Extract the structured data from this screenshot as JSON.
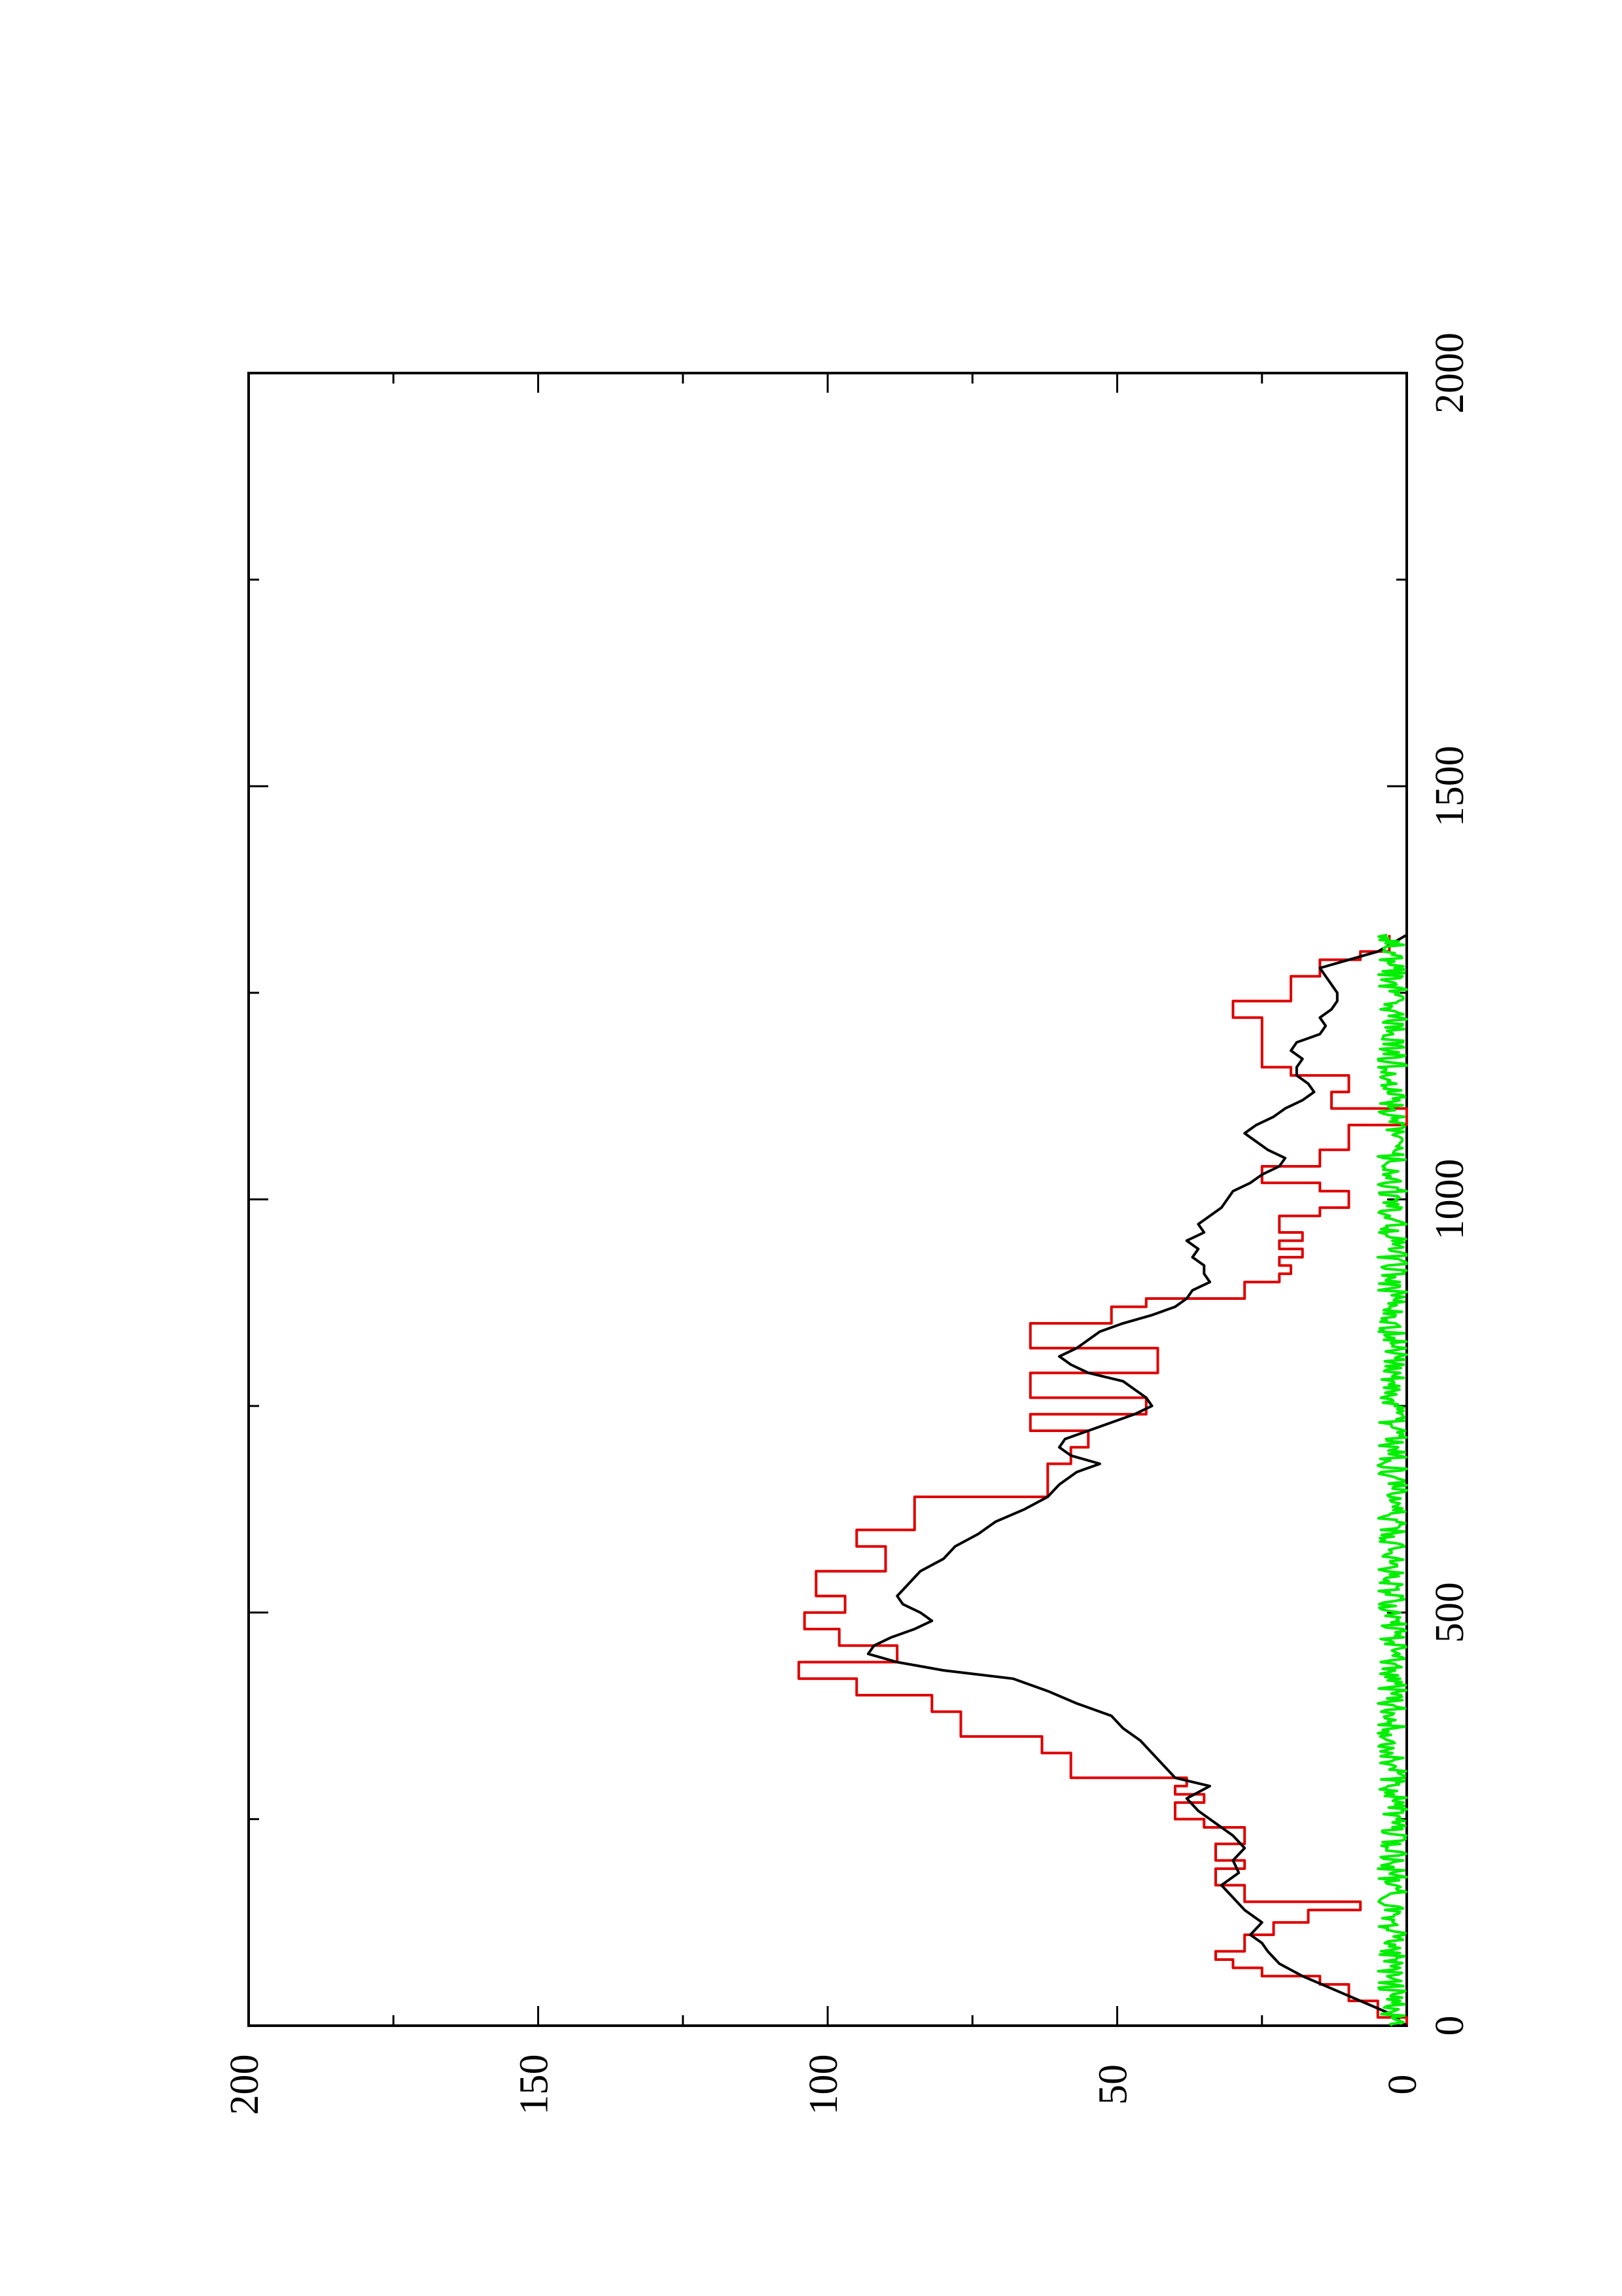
{
  "chart_data": {
    "type": "line",
    "orientation": "rotated-90-counterclockwise",
    "title": "",
    "xlabel": "",
    "ylabel": "",
    "xlim": [
      0,
      2000
    ],
    "ylim": [
      0,
      200
    ],
    "x_ticks_major": [
      0,
      500,
      1000,
      1500,
      2000
    ],
    "x_ticks_minor": [
      250,
      750,
      1250,
      1750
    ],
    "y_ticks_major": [
      0,
      50,
      100,
      150,
      200
    ],
    "y_ticks_minor": [
      25,
      75,
      125,
      175
    ],
    "x_tick_labels": [
      "0",
      "500",
      "1000",
      "1500",
      "2000"
    ],
    "y_tick_labels": [
      "0",
      "50",
      "100",
      "150",
      "200"
    ],
    "grid": false,
    "legend": "none",
    "series": [
      {
        "color": "#dd0000",
        "x": [
          0,
          10,
          10,
          30,
          30,
          50,
          50,
          60,
          60,
          70,
          70,
          80,
          80,
          90,
          90,
          110,
          110,
          125,
          125,
          140,
          140,
          150,
          150,
          170,
          170,
          190,
          190,
          200,
          200,
          220,
          220,
          240,
          240,
          250,
          250,
          270,
          270,
          280,
          280,
          290,
          290,
          300,
          300,
          330,
          330,
          350,
          350,
          380,
          380,
          400,
          400,
          420,
          420,
          440,
          440,
          460,
          460,
          480,
          480,
          500,
          500,
          520,
          520,
          550,
          550,
          580,
          580,
          600,
          600,
          640,
          640,
          680,
          680,
          700,
          700,
          720,
          720,
          740,
          740,
          760,
          760,
          790,
          790,
          820,
          820,
          850,
          850,
          870,
          870,
          880,
          880,
          900,
          900,
          910,
          910,
          920,
          920,
          930,
          930,
          940,
          940,
          950,
          950,
          960,
          960,
          980,
          980,
          990,
          990,
          1010,
          1010,
          1020,
          1020,
          1040,
          1040,
          1060,
          1060,
          1090,
          1090,
          1110,
          1110,
          1130,
          1130,
          1150,
          1150,
          1160,
          1160,
          1200,
          1200,
          1220,
          1220,
          1240,
          1240,
          1270,
          1270,
          1290,
          1290,
          1300,
          1300,
          1320
        ],
        "y": [
          0,
          0,
          5,
          5,
          10,
          10,
          15,
          15,
          25,
          25,
          30,
          30,
          33,
          33,
          28,
          28,
          23,
          23,
          17,
          17,
          8,
          8,
          28,
          28,
          33,
          33,
          28,
          28,
          33,
          33,
          28,
          28,
          35,
          35,
          40,
          40,
          35,
          35,
          40,
          40,
          38,
          38,
          58,
          58,
          63,
          63,
          77,
          77,
          82,
          82,
          95,
          95,
          105,
          105,
          88,
          88,
          98,
          98,
          104,
          104,
          97,
          97,
          102,
          102,
          90,
          90,
          95,
          95,
          85,
          85,
          62,
          62,
          58,
          58,
          55,
          55,
          65,
          65,
          45,
          45,
          65,
          65,
          43,
          43,
          65,
          65,
          51,
          51,
          45,
          45,
          28,
          28,
          22,
          22,
          20,
          20,
          22,
          22,
          18,
          18,
          22,
          22,
          18,
          18,
          22,
          22,
          15,
          15,
          10,
          10,
          15,
          15,
          25,
          25,
          15,
          15,
          10,
          10,
          0,
          0,
          13,
          13,
          10,
          10,
          20,
          20,
          25,
          25,
          25,
          25,
          30,
          30,
          20,
          20,
          15,
          15,
          8,
          8,
          3,
          3
        ]
      },
      {
        "color": "#000000",
        "x": [
          0,
          15,
          30,
          45,
          60,
          75,
          90,
          100,
          110,
          125,
          140,
          155,
          170,
          185,
          200,
          215,
          230,
          245,
          260,
          275,
          290,
          300,
          315,
          330,
          345,
          360,
          375,
          390,
          405,
          420,
          430,
          440,
          450,
          460,
          470,
          480,
          490,
          500,
          510,
          520,
          535,
          550,
          565,
          580,
          595,
          610,
          625,
          640,
          655,
          670,
          680,
          690,
          700,
          710,
          720,
          730,
          740,
          750,
          760,
          770,
          780,
          790,
          800,
          810,
          820,
          830,
          840,
          850,
          860,
          870,
          880,
          890,
          900,
          910,
          920,
          930,
          940,
          950,
          960,
          970,
          980,
          990,
          1000,
          1010,
          1020,
          1030,
          1040,
          1050,
          1060,
          1070,
          1080,
          1090,
          1100,
          1110,
          1120,
          1130,
          1140,
          1150,
          1160,
          1170,
          1180,
          1190,
          1200,
          1210,
          1220,
          1230,
          1240,
          1250,
          1260,
          1270,
          1280,
          1290,
          1300,
          1320
        ],
        "y": [
          0,
          3,
          8,
          13,
          18,
          22,
          24,
          25,
          27,
          25,
          28,
          30,
          32,
          29,
          30,
          28,
          30,
          33,
          36,
          38,
          34,
          40,
          42,
          44,
          46,
          49,
          51,
          57,
          62,
          68,
          80,
          88,
          93,
          92,
          89,
          85,
          82,
          84,
          87,
          88,
          86,
          84,
          80,
          78,
          74,
          71,
          66,
          62,
          60,
          57,
          53,
          58,
          60,
          59,
          55,
          51,
          47,
          44,
          45,
          47,
          49,
          55,
          58,
          60,
          57,
          55,
          53,
          49,
          44,
          40,
          38,
          37,
          34,
          35,
          35,
          37,
          36,
          38,
          35,
          36,
          34,
          32,
          31,
          30,
          27,
          25,
          22,
          21,
          24,
          26,
          28,
          26,
          23,
          21,
          18,
          16,
          17,
          19,
          19,
          18,
          20,
          19,
          15,
          14,
          15,
          13,
          12,
          12,
          13,
          14,
          15,
          10,
          5,
          0
        ]
      },
      {
        "color": "#00ee00",
        "x": [
          0,
          1320
        ],
        "y_range": [
          0,
          5
        ],
        "description_values": [
          0,
          5
        ]
      }
    ]
  }
}
